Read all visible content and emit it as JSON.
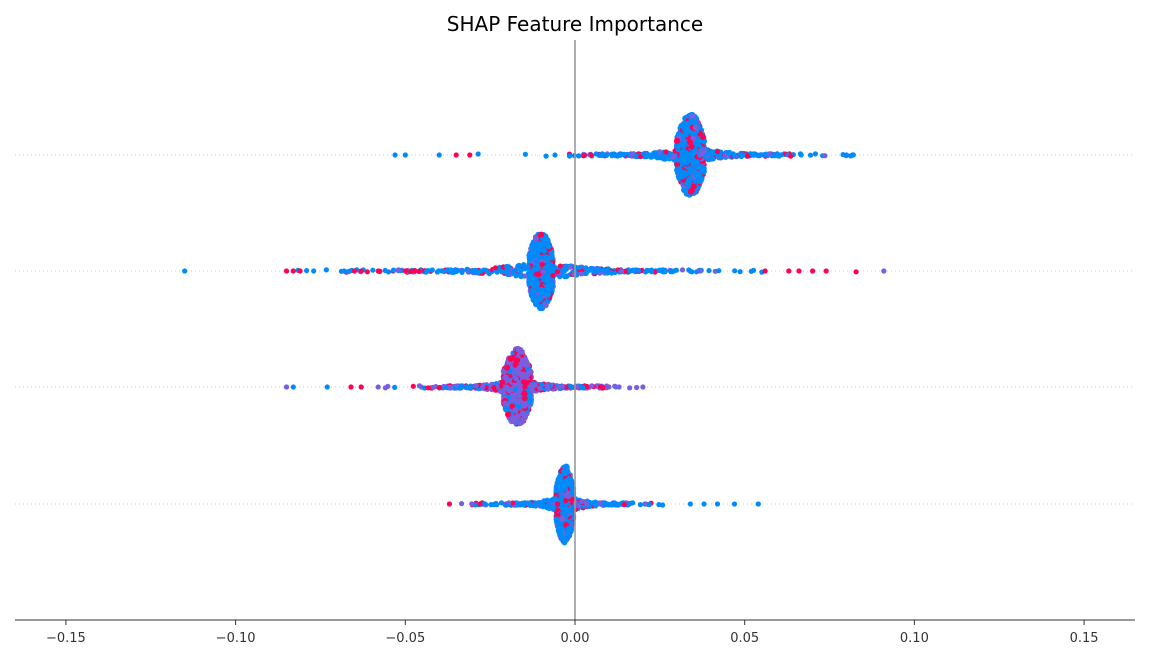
{
  "chart_data": {
    "type": "scatter",
    "subtype": "beeswarm",
    "title": "SHAP Feature Importance",
    "xlabel": "",
    "ylabel": "",
    "xlim": [
      -0.165,
      0.165
    ],
    "xticks": [
      -0.15,
      -0.1,
      -0.05,
      0.0,
      0.05,
      0.1,
      0.15
    ],
    "xtick_labels": [
      "−0.15",
      "−0.10",
      "−0.05",
      "0.00",
      "0.05",
      "0.10",
      "0.15"
    ],
    "zero_line": 0.0,
    "grid": false,
    "legend": "none",
    "colors": {
      "high": "#ff0052",
      "low": "#008bfb",
      "mid": "#7a5ee0",
      "zero_line": "#999999",
      "axis": "#333333",
      "row_guide": "#cccccc"
    },
    "features": [
      {
        "row": 1,
        "min": -0.053,
        "max": 0.082,
        "peak": 0.034,
        "peak_halfwidth_units": 0.004,
        "peak_height": 0.9,
        "dominant_color": "low",
        "outliers": [
          {
            "x": -0.053,
            "c": "low"
          },
          {
            "x": -0.05,
            "c": "low"
          },
          {
            "x": -0.04,
            "c": "low"
          },
          {
            "x": -0.035,
            "c": "high"
          },
          {
            "x": -0.031,
            "c": "high"
          },
          {
            "x": 0.08,
            "c": "low"
          },
          {
            "x": 0.082,
            "c": "low"
          }
        ]
      },
      {
        "row": 2,
        "min": -0.115,
        "max": 0.091,
        "peak": -0.01,
        "peak_halfwidth_units": 0.0035,
        "peak_height": 0.85,
        "dominant_color": "low",
        "outliers": [
          {
            "x": -0.115,
            "c": "low"
          },
          {
            "x": -0.085,
            "c": "high"
          },
          {
            "x": -0.083,
            "c": "high"
          },
          {
            "x": -0.081,
            "c": "high"
          },
          {
            "x": -0.077,
            "c": "low"
          },
          {
            "x": -0.068,
            "c": "low"
          },
          {
            "x": -0.065,
            "c": "high"
          },
          {
            "x": -0.063,
            "c": "high"
          },
          {
            "x": -0.058,
            "c": "high"
          },
          {
            "x": -0.05,
            "c": "high"
          },
          {
            "x": 0.056,
            "c": "high"
          },
          {
            "x": 0.063,
            "c": "high"
          },
          {
            "x": 0.066,
            "c": "high"
          },
          {
            "x": 0.07,
            "c": "high"
          },
          {
            "x": 0.074,
            "c": "high"
          },
          {
            "x": 0.091,
            "c": "mid"
          }
        ]
      },
      {
        "row": 3,
        "min": -0.085,
        "max": 0.02,
        "peak": -0.017,
        "peak_halfwidth_units": 0.004,
        "peak_height": 0.85,
        "dominant_color": "mid",
        "outliers": [
          {
            "x": -0.085,
            "c": "mid"
          },
          {
            "x": -0.083,
            "c": "low"
          },
          {
            "x": -0.073,
            "c": "low"
          },
          {
            "x": -0.066,
            "c": "high"
          },
          {
            "x": -0.063,
            "c": "high"
          },
          {
            "x": -0.058,
            "c": "mid"
          },
          {
            "x": 0.01,
            "c": "mid"
          },
          {
            "x": 0.013,
            "c": "mid"
          },
          {
            "x": 0.02,
            "c": "mid"
          }
        ]
      },
      {
        "row": 4,
        "min": -0.037,
        "max": 0.054,
        "peak": -0.003,
        "peak_halfwidth_units": 0.0025,
        "peak_height": 0.85,
        "dominant_color": "low",
        "outliers": [
          {
            "x": -0.037,
            "c": "high"
          },
          {
            "x": -0.028,
            "c": "high"
          },
          {
            "x": 0.034,
            "c": "low"
          },
          {
            "x": 0.038,
            "c": "low"
          },
          {
            "x": 0.042,
            "c": "low"
          },
          {
            "x": 0.047,
            "c": "low"
          },
          {
            "x": 0.054,
            "c": "low"
          }
        ]
      }
    ]
  }
}
